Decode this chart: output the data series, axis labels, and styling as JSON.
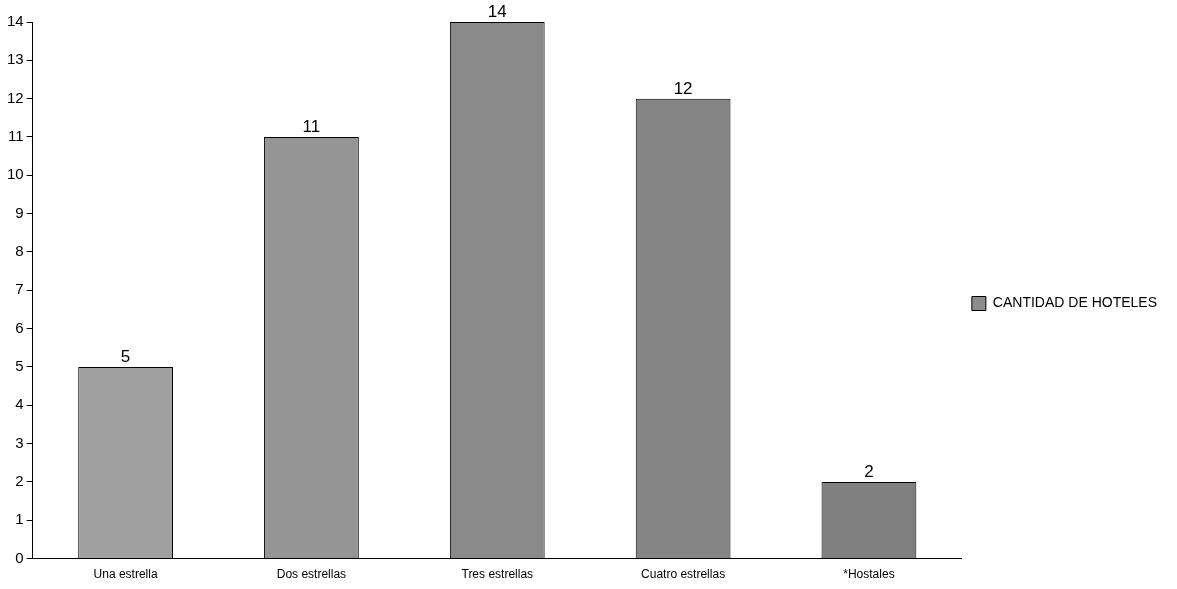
{
  "chart_data": {
    "type": "bar",
    "categories": [
      "Una estrella",
      "Dos estrellas",
      "Tres estrellas",
      "Cuatro estrellas",
      "*Hostales"
    ],
    "series": [
      {
        "name": "CANTIDAD DE HOTELES",
        "color": "#8c8c8c",
        "colors": [
          "#a0a0a0",
          "#959595",
          "#8a8a8a",
          "#858585",
          "#808080"
        ],
        "values": [
          5,
          11,
          14,
          12,
          2
        ]
      }
    ],
    "ylim": [
      0,
      14
    ],
    "yticks": [
      0,
      1,
      2,
      3,
      4,
      5,
      6,
      7,
      8,
      9,
      10,
      11,
      12,
      13,
      14
    ],
    "grid": false,
    "legend": "right",
    "data_labels": true
  }
}
